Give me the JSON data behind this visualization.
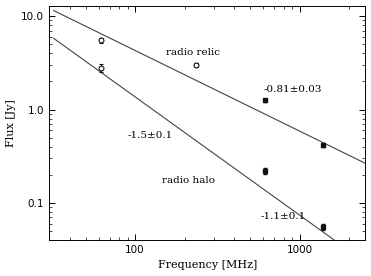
{
  "relic_freq_sq": [
    610,
    1382
  ],
  "relic_flux_sq": [
    1.25,
    0.42
  ],
  "relic_flux_sq_err": [
    0.06,
    0.02
  ],
  "relic_freq_circ": [
    62,
    235
  ],
  "relic_flux_circ": [
    5.5,
    3.0
  ],
  "relic_flux_circ_err": [
    0.3,
    0.15
  ],
  "halo_freq_sq": [
    610,
    1382
  ],
  "halo_flux_sq": [
    0.22,
    0.055
  ],
  "halo_flux_sq_err": [
    0.015,
    0.004
  ],
  "halo_freq_circ": [
    62
  ],
  "halo_flux_circ": [
    2.8
  ],
  "halo_flux_circ_err": [
    0.25
  ],
  "relic_line_freq": [
    32,
    2500
  ],
  "relic_line_flux": [
    11.5,
    0.265
  ],
  "halo_line_freq": [
    32,
    2500
  ],
  "halo_line_flux": [
    5.8,
    0.023
  ],
  "relic_label": "radio relic",
  "halo_label": "radio halo",
  "relic_spectral_index": "-0.81±0.03",
  "halo_spectral_index_upper": "-1.5±0.1",
  "halo_spectral_index_lower": "-1.1±0.1",
  "xlabel": "Frequency [MHz]",
  "ylabel": "Flux [Jy]",
  "xlim": [
    30,
    2500
  ],
  "ylim": [
    0.04,
    13
  ],
  "bg_color": "#ffffff",
  "line_color": "#444444",
  "marker_color": "#111111",
  "fontsize": 8
}
